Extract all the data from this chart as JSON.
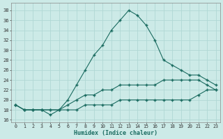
{
  "xlabel": "Humidex (Indice chaleur)",
  "ylabel": "",
  "background_color": "#cceae7",
  "grid_color": "#b0d8d4",
  "line_color": "#1a6b60",
  "x": [
    0,
    1,
    2,
    3,
    4,
    5,
    6,
    7,
    8,
    9,
    10,
    11,
    12,
    13,
    14,
    15,
    16,
    17,
    18,
    19,
    20,
    21,
    22,
    23
  ],
  "y_max": [
    19,
    18,
    18,
    18,
    17,
    18,
    20,
    23,
    26,
    29,
    31,
    34,
    36,
    38,
    37,
    35,
    32,
    28,
    27,
    26,
    25,
    25,
    24,
    23
  ],
  "y_mean": [
    19,
    18,
    18,
    18,
    18,
    18,
    19,
    20,
    21,
    21,
    22,
    22,
    23,
    23,
    23,
    23,
    23,
    24,
    24,
    24,
    24,
    24,
    23,
    22
  ],
  "y_min": [
    19,
    18,
    18,
    18,
    18,
    18,
    18,
    18,
    19,
    19,
    19,
    19,
    20,
    20,
    20,
    20,
    20,
    20,
    20,
    20,
    20,
    21,
    22,
    22
  ],
  "xlim": [
    -0.5,
    23.5
  ],
  "ylim": [
    15.5,
    39.5
  ],
  "yticks": [
    16,
    18,
    20,
    22,
    24,
    26,
    28,
    30,
    32,
    34,
    36,
    38
  ],
  "xticks": [
    0,
    1,
    2,
    3,
    4,
    5,
    6,
    7,
    8,
    9,
    10,
    11,
    12,
    13,
    14,
    15,
    16,
    17,
    18,
    19,
    20,
    21,
    22,
    23
  ]
}
